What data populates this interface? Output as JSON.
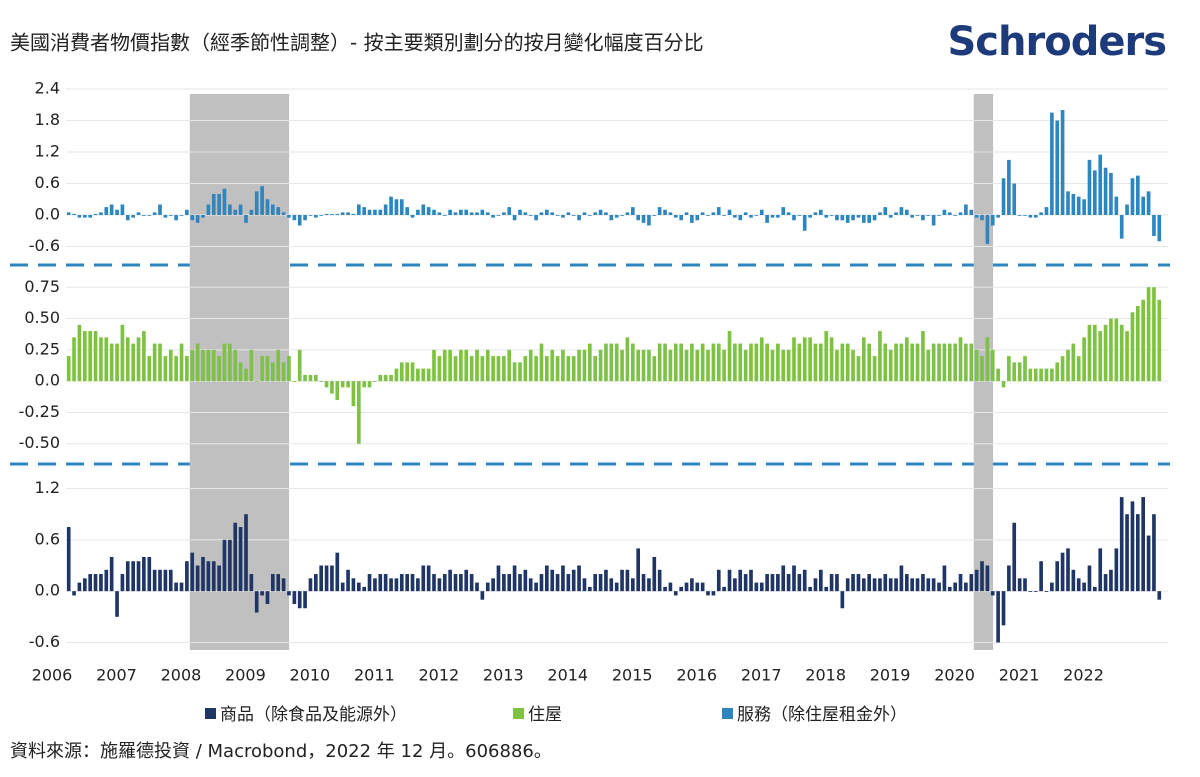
{
  "chart_data": {
    "type": "bar",
    "title": "美國消費者物價指數（經季節性調整）- 按主要類別劃分的按月變化幅度百分比",
    "brand": "Schroders",
    "source": "資料來源：施羅德投資 / Macrobond，2022 年 12 月。606886。",
    "xlim": [
      2006,
      2023
    ],
    "xticks": [
      2006,
      2007,
      2008,
      2009,
      2010,
      2011,
      2012,
      2013,
      2014,
      2015,
      2016,
      2017,
      2018,
      2019,
      2020,
      2021,
      2022
    ],
    "shaded": [
      [
        2007.92,
        2009.46
      ],
      [
        2020.08,
        2020.38
      ]
    ],
    "grid": true,
    "x": [
      2006.042,
      2006.125,
      2006.208,
      2006.292,
      2006.375,
      2006.458,
      2006.542,
      2006.625,
      2006.708,
      2006.792,
      2006.875,
      2006.958,
      2007.042,
      2007.125,
      2007.208,
      2007.292,
      2007.375,
      2007.458,
      2007.542,
      2007.625,
      2007.708,
      2007.792,
      2007.875,
      2007.958,
      2008.042,
      2008.125,
      2008.208,
      2008.292,
      2008.375,
      2008.458,
      2008.542,
      2008.625,
      2008.708,
      2008.792,
      2008.875,
      2008.958,
      2009.042,
      2009.125,
      2009.208,
      2009.292,
      2009.375,
      2009.458,
      2009.542,
      2009.625,
      2009.708,
      2009.792,
      2009.875,
      2009.958,
      2010.042,
      2010.125,
      2010.208,
      2010.292,
      2010.375,
      2010.458,
      2010.542,
      2010.625,
      2010.708,
      2010.792,
      2010.875,
      2010.958,
      2011.042,
      2011.125,
      2011.208,
      2011.292,
      2011.375,
      2011.458,
      2011.542,
      2011.625,
      2011.708,
      2011.792,
      2011.875,
      2011.958,
      2012.042,
      2012.125,
      2012.208,
      2012.292,
      2012.375,
      2012.458,
      2012.542,
      2012.625,
      2012.708,
      2012.792,
      2012.875,
      2012.958,
      2013.042,
      2013.125,
      2013.208,
      2013.292,
      2013.375,
      2013.458,
      2013.542,
      2013.625,
      2013.708,
      2013.792,
      2013.875,
      2013.958,
      2014.042,
      2014.125,
      2014.208,
      2014.292,
      2014.375,
      2014.458,
      2014.542,
      2014.625,
      2014.708,
      2014.792,
      2014.875,
      2014.958,
      2015.042,
      2015.125,
      2015.208,
      2015.292,
      2015.375,
      2015.458,
      2015.542,
      2015.625,
      2015.708,
      2015.792,
      2015.875,
      2015.958,
      2016.042,
      2016.125,
      2016.208,
      2016.292,
      2016.375,
      2016.458,
      2016.542,
      2016.625,
      2016.708,
      2016.792,
      2016.875,
      2016.958,
      2017.042,
      2017.125,
      2017.208,
      2017.292,
      2017.375,
      2017.458,
      2017.542,
      2017.625,
      2017.708,
      2017.792,
      2017.875,
      2017.958,
      2018.042,
      2018.125,
      2018.208,
      2018.292,
      2018.375,
      2018.458,
      2018.542,
      2018.625,
      2018.708,
      2018.792,
      2018.875,
      2018.958,
      2019.042,
      2019.125,
      2019.208,
      2019.292,
      2019.375,
      2019.458,
      2019.542,
      2019.625,
      2019.708,
      2019.792,
      2019.875,
      2019.958,
      2020.042,
      2020.125,
      2020.208,
      2020.292,
      2020.375,
      2020.458,
      2020.542,
      2020.625,
      2020.708,
      2020.792,
      2020.875,
      2020.958,
      2021.042,
      2021.125,
      2021.208,
      2021.292,
      2021.375,
      2021.458,
      2021.542,
      2021.625,
      2021.708,
      2021.792,
      2021.875,
      2021.958,
      2022.042,
      2022.125,
      2022.208,
      2022.292,
      2022.375,
      2022.458,
      2022.542,
      2022.625,
      2022.708,
      2022.792,
      2022.875,
      2022.958
    ],
    "series": [
      {
        "name": "商品（除食品及能源外）",
        "color": "#1f3566",
        "ylim": [
          -0.7,
          1.3
        ],
        "yticks": [
          1.2,
          0.6,
          {
            "value": 0,
            "label": "0.0"
          },
          -0.6
        ],
        "values": [
          0.75,
          -0.05,
          0.1,
          0.15,
          0.2,
          0.2,
          0.2,
          0.25,
          0.4,
          -0.3,
          0.2,
          0.35,
          0.35,
          0.35,
          0.4,
          0.4,
          0.25,
          0.25,
          0.25,
          0.25,
          0.1,
          0.1,
          0.35,
          0.45,
          0.3,
          0.4,
          0.35,
          0.35,
          0.3,
          0.6,
          0.6,
          0.8,
          0.75,
          0.9,
          0.2,
          -0.25,
          -0.05,
          -0.15,
          0.2,
          0.2,
          0.15,
          -0.05,
          -0.15,
          -0.2,
          -0.2,
          0.15,
          0.2,
          0.3,
          0.3,
          0.3,
          0.45,
          0.1,
          0.25,
          0.15,
          0.1,
          0.05,
          0.2,
          0.15,
          0.2,
          0.2,
          0.15,
          0.15,
          0.2,
          0.2,
          0.2,
          0.15,
          0.3,
          0.3,
          0.2,
          0.15,
          0.2,
          0.25,
          0.2,
          0.2,
          0.25,
          0.2,
          0.1,
          -0.1,
          0.1,
          0.15,
          0.3,
          0.2,
          0.2,
          0.3,
          0.2,
          0.25,
          0.15,
          0.1,
          0.2,
          0.3,
          0.25,
          0.2,
          0.3,
          0.2,
          0.25,
          0.3,
          0.15,
          0.05,
          0.2,
          0.2,
          0.25,
          0.15,
          0.1,
          0.25,
          0.25,
          0.15,
          0.5,
          0.2,
          0.15,
          0.4,
          0.25,
          0.05,
          0.1,
          -0.05,
          0.05,
          0.1,
          0.15,
          0.1,
          0.1,
          -0.05,
          -0.05,
          0.25,
          0.05,
          0.25,
          0.15,
          0.25,
          0.2,
          0.25,
          0.1,
          0.1,
          0.2,
          0.2,
          0.2,
          0.3,
          0.2,
          0.3,
          0.2,
          0.25,
          0.05,
          0.15,
          0.25,
          0.05,
          0.2,
          0.2,
          -0.2,
          0.15,
          0.2,
          0.2,
          0.15,
          0.2,
          0.15,
          0.15,
          0.2,
          0.15,
          0.15,
          0.3,
          0.2,
          0.15,
          0.15,
          0.2,
          0.15,
          0.15,
          0.1,
          0.3,
          0.05,
          0.1,
          0.2,
          0.1,
          0.2,
          0.25,
          0.35,
          0.3,
          -0.05,
          -0.6,
          -0.4,
          0.3,
          0.8,
          0.15,
          0.15,
          0.0,
          0.0,
          0.35,
          0.0,
          0.1,
          0.35,
          0.45,
          0.5,
          0.25,
          0.15,
          0.1,
          0.3,
          0.05,
          0.5,
          0.2,
          0.25,
          0.5,
          1.1,
          0.9,
          1.05,
          0.9,
          1.1,
          0.65,
          0.9,
          -0.1
        ]
      },
      {
        "name": "住屋",
        "color": "#7dc242",
        "ylim": [
          -0.55,
          0.8
        ],
        "yticks": [
          0.75,
          {
            "value": 0.5,
            "label": "0.50"
          },
          0.25,
          {
            "value": 0,
            "label": "0.0"
          },
          -0.25,
          {
            "value": -0.5,
            "label": "-0.50"
          }
        ],
        "values": [
          0.2,
          0.35,
          0.45,
          0.4,
          0.4,
          0.4,
          0.35,
          0.35,
          0.3,
          0.3,
          0.45,
          0.35,
          0.3,
          0.35,
          0.4,
          0.2,
          0.3,
          0.3,
          0.2,
          0.25,
          0.2,
          0.3,
          0.2,
          0.25,
          0.3,
          0.25,
          0.25,
          0.25,
          0.2,
          0.3,
          0.3,
          0.25,
          0.15,
          0.1,
          0.25,
          0.0,
          0.2,
          0.2,
          0.15,
          0.25,
          0.15,
          0.2,
          0.0,
          0.25,
          0.05,
          0.05,
          0.05,
          0.0,
          -0.05,
          -0.1,
          -0.15,
          -0.05,
          -0.05,
          -0.2,
          -0.5,
          -0.05,
          -0.05,
          0.0,
          0.05,
          0.05,
          0.05,
          0.1,
          0.15,
          0.15,
          0.15,
          0.1,
          0.1,
          0.1,
          0.25,
          0.2,
          0.25,
          0.25,
          0.2,
          0.25,
          0.25,
          0.2,
          0.25,
          0.2,
          0.25,
          0.2,
          0.2,
          0.2,
          0.25,
          0.15,
          0.15,
          0.2,
          0.25,
          0.2,
          0.3,
          0.2,
          0.25,
          0.2,
          0.25,
          0.2,
          0.2,
          0.25,
          0.25,
          0.3,
          0.2,
          0.25,
          0.3,
          0.3,
          0.3,
          0.25,
          0.35,
          0.3,
          0.25,
          0.25,
          0.25,
          0.2,
          0.3,
          0.3,
          0.25,
          0.3,
          0.3,
          0.25,
          0.3,
          0.25,
          0.3,
          0.25,
          0.3,
          0.3,
          0.25,
          0.4,
          0.3,
          0.3,
          0.25,
          0.3,
          0.3,
          0.35,
          0.3,
          0.25,
          0.3,
          0.25,
          0.25,
          0.35,
          0.3,
          0.35,
          0.35,
          0.3,
          0.3,
          0.4,
          0.35,
          0.25,
          0.3,
          0.3,
          0.25,
          0.2,
          0.35,
          0.3,
          0.2,
          0.4,
          0.3,
          0.25,
          0.3,
          0.3,
          0.35,
          0.3,
          0.3,
          0.4,
          0.25,
          0.3,
          0.3,
          0.3,
          0.3,
          0.3,
          0.35,
          0.3,
          0.3,
          0.25,
          0.2,
          0.35,
          0.25,
          0.1,
          -0.05,
          0.2,
          0.15,
          0.15,
          0.2,
          0.1,
          0.1,
          0.1,
          0.1,
          0.1,
          0.15,
          0.2,
          0.25,
          0.3,
          0.2,
          0.35,
          0.45,
          0.45,
          0.4,
          0.45,
          0.5,
          0.5,
          0.45,
          0.4,
          0.55,
          0.6,
          0.65,
          0.75,
          0.75,
          0.65
        ]
      },
      {
        "name": "服務（除住屋租金外）",
        "color": "#2e86c1",
        "ylim": [
          -0.8,
          2.4
        ],
        "yticks": [
          2.4,
          1.8,
          1.2,
          0.6,
          {
            "value": 0,
            "label": "0.0"
          },
          -0.6
        ],
        "values": [
          0.05,
          0.02,
          -0.05,
          -0.05,
          -0.05,
          0.02,
          0.05,
          0.15,
          0.2,
          0.1,
          0.2,
          -0.1,
          -0.05,
          0.05,
          0.0,
          0.0,
          0.05,
          0.2,
          -0.05,
          0.0,
          -0.1,
          0.0,
          0.1,
          -0.1,
          -0.15,
          -0.05,
          0.2,
          0.4,
          0.4,
          0.5,
          0.2,
          0.1,
          0.2,
          -0.15,
          0.1,
          0.45,
          0.55,
          0.3,
          0.2,
          0.15,
          0.05,
          -0.05,
          -0.1,
          -0.2,
          -0.1,
          0.0,
          -0.05,
          0.0,
          0.02,
          0.02,
          0.02,
          0.05,
          0.05,
          0.02,
          0.2,
          0.15,
          0.1,
          0.1,
          0.1,
          0.2,
          0.35,
          0.3,
          0.3,
          0.15,
          -0.05,
          0.1,
          0.2,
          0.15,
          0.1,
          0.05,
          0.0,
          0.1,
          0.05,
          0.1,
          0.1,
          0.05,
          0.05,
          0.1,
          0.05,
          -0.05,
          0.0,
          0.05,
          0.15,
          -0.1,
          0.1,
          0.05,
          0.0,
          -0.1,
          0.05,
          0.1,
          0.05,
          0.0,
          -0.05,
          0.05,
          0.0,
          -0.1,
          0.05,
          0.0,
          0.05,
          0.1,
          0.05,
          -0.1,
          -0.05,
          0.0,
          0.05,
          0.15,
          -0.1,
          -0.15,
          -0.2,
          0.0,
          0.15,
          0.1,
          0.05,
          -0.05,
          -0.1,
          0.05,
          -0.15,
          -0.1,
          0.05,
          0.0,
          0.05,
          0.15,
          0.0,
          0.1,
          -0.05,
          -0.1,
          0.05,
          -0.05,
          0.0,
          0.1,
          -0.15,
          -0.05,
          -0.05,
          0.15,
          0.05,
          -0.1,
          0.0,
          -0.3,
          -0.05,
          0.05,
          0.1,
          -0.05,
          0.0,
          -0.1,
          -0.1,
          -0.15,
          -0.1,
          -0.05,
          -0.15,
          -0.15,
          -0.1,
          0.05,
          0.15,
          -0.05,
          0.05,
          0.15,
          0.1,
          -0.05,
          0.0,
          -0.1,
          0.0,
          -0.2,
          0.0,
          0.1,
          0.05,
          0.0,
          0.05,
          0.2,
          0.1,
          -0.05,
          -0.1,
          -0.55,
          -0.2,
          -0.05,
          0.7,
          1.05,
          0.6,
          0.0,
          0.0,
          -0.05,
          -0.05,
          0.05,
          0.15,
          1.95,
          1.8,
          2.0,
          0.45,
          0.4,
          0.35,
          0.3,
          1.05,
          0.85,
          1.15,
          0.9,
          0.8,
          0.35,
          -0.45,
          0.2,
          0.7,
          0.75,
          0.35,
          0.45,
          -0.4,
          -0.5
        ]
      }
    ]
  }
}
